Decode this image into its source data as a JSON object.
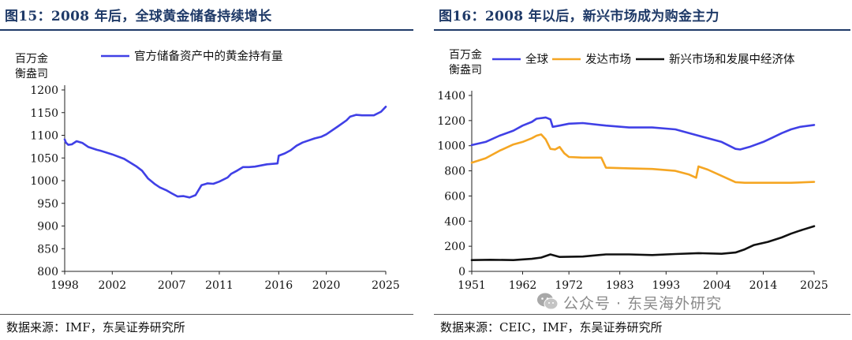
{
  "figures": [
    {
      "title": "图15：2008 年后，全球黄金储备持续增长",
      "source": "数据来源：IMF，东吴证券研究所"
    },
    {
      "title": "图16：2008 年以后，新兴市场成为购金主力",
      "source": "数据来源：CEIC，IMF，东吴证券研究所"
    }
  ],
  "watermark": {
    "text": "公众号 · 东吴海外研究",
    "icon": "wechat-icon",
    "color": "#8a8a8a"
  },
  "chart_data": [
    {
      "type": "line",
      "title": "",
      "unit_label": [
        "百万金",
        "衡盎司"
      ],
      "xlabel": "",
      "ylabel": "",
      "ylim": [
        800,
        1200
      ],
      "yticks": [
        800,
        850,
        900,
        950,
        1000,
        1050,
        1100,
        1150,
        1200
      ],
      "xlim": [
        1998,
        2025
      ],
      "xticks": [
        1998,
        2002,
        2007,
        2011,
        2016,
        2020,
        2025
      ],
      "xtick_positions": [
        1998,
        2002,
        2007,
        2011,
        2016,
        2020,
        2025
      ],
      "grid": false,
      "legend": "top",
      "series": [
        {
          "name": "官方储备资产中的黄金持有量",
          "color": "#4040e6",
          "x": [
            1998,
            1998.1,
            1998.3,
            1998.6,
            1999,
            1999.5,
            2000,
            2000.7,
            2001,
            2002,
            2003,
            2003.5,
            2004,
            2004.5,
            2005,
            2005.6,
            2006,
            2006.6,
            2007,
            2007.5,
            2008,
            2008.5,
            2009,
            2009.5,
            2009.9,
            2010,
            2010.5,
            2011,
            2011.7,
            2012,
            2012.5,
            2013,
            2013.5,
            2014,
            2015,
            2015.9,
            2016,
            2016.5,
            2017,
            2017.5,
            2018,
            2019,
            2019.6,
            2020,
            2021,
            2021.7,
            2022,
            2022.5,
            2023,
            2024,
            2024.6,
            2025
          ],
          "values": [
            1091,
            1084,
            1079,
            1080,
            1087,
            1083,
            1074,
            1068,
            1066,
            1058,
            1048,
            1040,
            1032,
            1022,
            1005,
            992,
            985,
            978,
            972,
            965,
            966,
            963,
            968,
            990,
            993,
            994,
            993,
            998,
            1007,
            1015,
            1022,
            1030,
            1030,
            1031,
            1036,
            1038,
            1055,
            1060,
            1067,
            1077,
            1084,
            1093,
            1097,
            1102,
            1120,
            1133,
            1141,
            1145,
            1144,
            1144,
            1152,
            1163
          ]
        }
      ]
    },
    {
      "type": "line",
      "title": "",
      "unit_label": [
        "百万金",
        "衡盎司"
      ],
      "xlabel": "",
      "ylabel": "",
      "ylim": [
        0,
        1400
      ],
      "yticks": [
        0,
        200,
        400,
        600,
        800,
        1000,
        1200,
        1400
      ],
      "xlim": [
        1951,
        2025
      ],
      "xticks": [
        1951,
        1962,
        1972,
        1983,
        1993,
        2004,
        2014,
        2025
      ],
      "xtick_positions": [
        1951,
        1962,
        1972,
        1983,
        1993,
        2004,
        2014,
        2025
      ],
      "grid": false,
      "legend": "top",
      "series": [
        {
          "name": "全球",
          "color": "#4040e6",
          "x": [
            1951,
            1954,
            1957,
            1960,
            1962,
            1964,
            1965,
            1967,
            1968,
            1968.5,
            1970,
            1972,
            1975,
            1980,
            1985,
            1990,
            1995,
            2000,
            2005,
            2008,
            2009,
            2011,
            2014,
            2016,
            2018,
            2020,
            2022,
            2025
          ],
          "values": [
            1005,
            1030,
            1080,
            1120,
            1160,
            1190,
            1215,
            1225,
            1210,
            1150,
            1160,
            1175,
            1180,
            1160,
            1145,
            1145,
            1130,
            1080,
            1030,
            975,
            970,
            990,
            1030,
            1065,
            1100,
            1130,
            1150,
            1165
          ]
        },
        {
          "name": "发达市场",
          "color": "#f5a623",
          "x": [
            1951,
            1954,
            1957,
            1960,
            1962,
            1964,
            1965,
            1966,
            1967,
            1968,
            1969,
            1970,
            1971,
            1972,
            1975,
            1979,
            1980,
            1985,
            1990,
            1995,
            1998,
            1999.5,
            2000,
            2002,
            2005,
            2008,
            2010,
            2015,
            2020,
            2025
          ],
          "values": [
            865,
            900,
            960,
            1010,
            1030,
            1060,
            1080,
            1090,
            1050,
            975,
            970,
            990,
            940,
            910,
            905,
            905,
            825,
            820,
            815,
            800,
            770,
            745,
            835,
            810,
            760,
            710,
            705,
            705,
            705,
            712
          ]
        },
        {
          "name": "新兴市场和发展中经济体",
          "color": "#111111",
          "x": [
            1951,
            1955,
            1960,
            1964,
            1966,
            1968,
            1970,
            1975,
            1980,
            1985,
            1990,
            1995,
            2000,
            2005,
            2008,
            2010,
            2012,
            2015,
            2018,
            2020,
            2022,
            2025
          ],
          "values": [
            90,
            92,
            90,
            100,
            110,
            135,
            115,
            118,
            135,
            135,
            130,
            138,
            145,
            140,
            150,
            175,
            210,
            235,
            270,
            300,
            325,
            360
          ]
        }
      ]
    }
  ]
}
